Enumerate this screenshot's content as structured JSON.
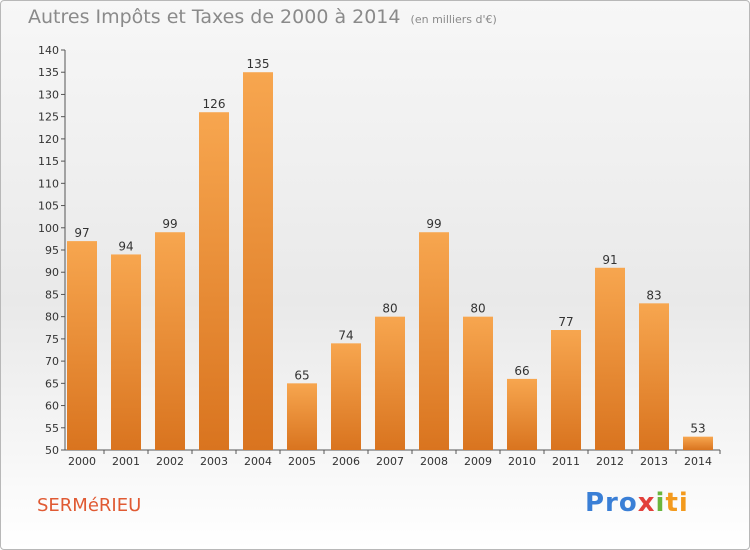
{
  "title": "Autres Impôts et Taxes de 2000 à 2014",
  "unit": "(en milliers d'€)",
  "commune": "SERMéRIEU",
  "brand": {
    "p1": "Pro",
    "p2": "x",
    "p3": "i",
    "p4": "ti"
  },
  "colors": {
    "bar_top": "#f7a64f",
    "bar_bottom": "#d9741f",
    "title": "#8a8a8a",
    "commune": "#e05a33"
  },
  "chart_data": {
    "type": "bar",
    "title": "Autres Impôts et Taxes de 2000 à 2014",
    "subtitle": "(en milliers d'€)",
    "categories": [
      "2000",
      "2001",
      "2002",
      "2003",
      "2004",
      "2005",
      "2006",
      "2007",
      "2008",
      "2009",
      "2010",
      "2011",
      "2012",
      "2013",
      "2014"
    ],
    "values": [
      97,
      94,
      99,
      126,
      135,
      65,
      74,
      80,
      99,
      80,
      66,
      77,
      91,
      83,
      53
    ],
    "ylim": [
      50,
      140
    ],
    "yticks": [
      50,
      55,
      60,
      65,
      70,
      75,
      80,
      85,
      90,
      95,
      100,
      105,
      110,
      115,
      120,
      125,
      130,
      135,
      140
    ],
    "grid": false,
    "xlabel": "",
    "ylabel": ""
  }
}
